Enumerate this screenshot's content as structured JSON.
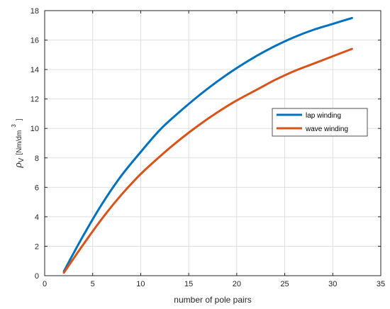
{
  "chart_data": {
    "type": "line",
    "xlabel": "number of pole pairs",
    "ylabel": {
      "symbol": "ρ",
      "subscript": "V",
      "unit": "[Nm/dm",
      "unit_superscript": "3",
      "unit_close": "]"
    },
    "xlim": [
      0,
      35
    ],
    "ylim": [
      0,
      18
    ],
    "xticks": [
      0,
      5,
      10,
      15,
      20,
      25,
      30,
      35
    ],
    "yticks": [
      0,
      2,
      4,
      6,
      8,
      10,
      12,
      14,
      16,
      18
    ],
    "grid": true,
    "legend_position": "right",
    "x": [
      2,
      4,
      6,
      8,
      10,
      12,
      14,
      16,
      18,
      20,
      22,
      24,
      26,
      28,
      30,
      32
    ],
    "series": [
      {
        "name": "lap winding",
        "color": "#0072BD",
        "values": [
          0.3,
          2.7,
          4.9,
          6.8,
          8.4,
          9.9,
          11.1,
          12.2,
          13.2,
          14.1,
          14.9,
          15.6,
          16.2,
          16.7,
          17.1,
          17.5
        ]
      },
      {
        "name": "wave winding",
        "color": "#D95319",
        "values": [
          0.2,
          2.1,
          3.9,
          5.5,
          6.9,
          8.1,
          9.2,
          10.2,
          11.1,
          11.9,
          12.6,
          13.3,
          13.9,
          14.4,
          14.9,
          15.4
        ]
      }
    ]
  }
}
